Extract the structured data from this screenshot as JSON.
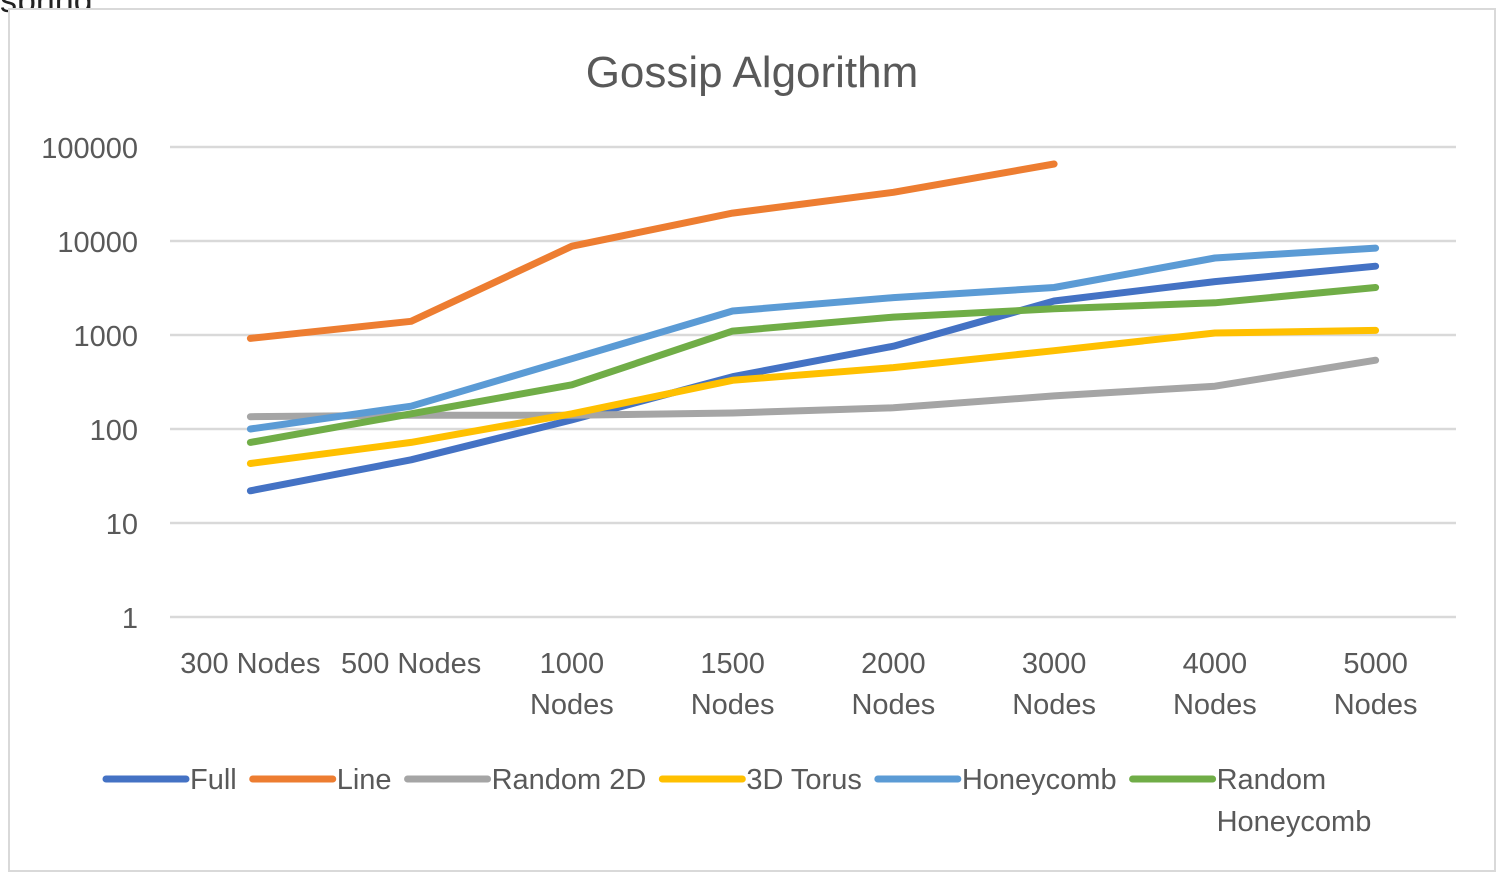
{
  "cut_text": "spring",
  "chart_data": {
    "type": "line",
    "title": "Gossip Algorithm",
    "xlabel": "",
    "ylabel": "",
    "yscale": "log",
    "ylim": [
      1,
      100000
    ],
    "yticks": [
      "1",
      "10",
      "100",
      "1000",
      "10000",
      "100000"
    ],
    "grid": true,
    "legend": "bottom",
    "categories": [
      "300 Nodes",
      "500 Nodes",
      "1000 Nodes",
      "1500 Nodes",
      "2000 Nodes",
      "3000 Nodes",
      "4000 Nodes",
      "5000 Nodes"
    ],
    "series": [
      {
        "name": "Full",
        "color": "#4472c4",
        "values": [
          22,
          47,
          125,
          360,
          760,
          2300,
          3700,
          5400
        ]
      },
      {
        "name": "Line",
        "color": "#ed7d31",
        "values": [
          920,
          1400,
          8800,
          19800,
          33000,
          66000,
          null,
          null
        ]
      },
      {
        "name": "Random 2D",
        "color": "#a5a5a5",
        "values": [
          135,
          140,
          140,
          148,
          168,
          225,
          285,
          540
        ]
      },
      {
        "name": "3D Torus",
        "color": "#ffc000",
        "values": [
          43,
          72,
          145,
          330,
          450,
          680,
          1050,
          1120
        ]
      },
      {
        "name": "Honeycomb",
        "color": "#5b9bd5",
        "values": [
          100,
          175,
          560,
          1800,
          2500,
          3200,
          6600,
          8400
        ]
      },
      {
        "name": "Random Honeycomb",
        "color": "#70ad47",
        "values": [
          72,
          145,
          295,
          1100,
          1550,
          1900,
          2200,
          3200
        ]
      }
    ]
  }
}
